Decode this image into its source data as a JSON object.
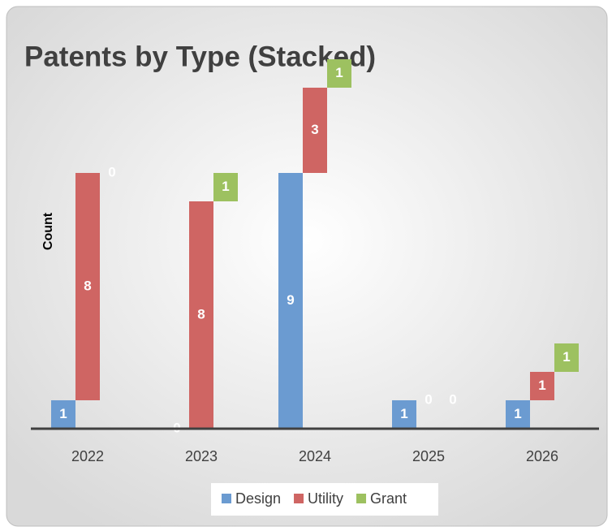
{
  "chart_data": {
    "type": "bar",
    "stacked": true,
    "title": "Patents by Type (Stacked)",
    "y_label": "Count",
    "categories": [
      "2022",
      "2023",
      "2024",
      "2025",
      "2026"
    ],
    "series": [
      {
        "name": "Design",
        "color": "#6b9bd1",
        "values": [
          1,
          0,
          9,
          1,
          1
        ]
      },
      {
        "name": "Utility",
        "color": "#cf6563",
        "values": [
          8,
          8,
          3,
          0,
          1
        ]
      },
      {
        "name": "Grant",
        "color": "#9dc160",
        "values": [
          0,
          1,
          1,
          0,
          1
        ]
      }
    ],
    "ylim": [
      0,
      13
    ],
    "legend": "bottom"
  }
}
